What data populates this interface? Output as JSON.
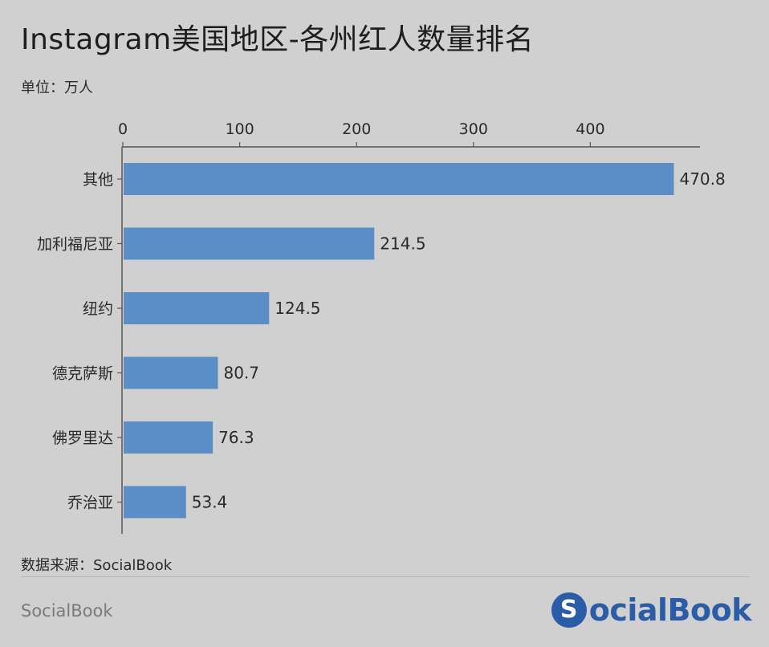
{
  "title": "Instagram美国地区-各州红人数量排名",
  "unit_label": "单位：万人",
  "source_label": "数据来源：SocialBook",
  "footer_brand": "SocialBook",
  "logo": {
    "letter": "S",
    "text": "ocialBook",
    "color": "#2b5ca8"
  },
  "colors": {
    "bar": "#5b8ec4",
    "axis": "#555555",
    "background": "#d0d0d0"
  },
  "chart_data": {
    "type": "bar",
    "orientation": "horizontal",
    "categories": [
      "其他",
      "加利福尼亚",
      "纽约",
      "德克萨斯",
      "佛罗里达",
      "乔治亚"
    ],
    "values": [
      470.8,
      214.5,
      124.5,
      80.7,
      76.3,
      53.4
    ],
    "value_labels": [
      "470.8",
      "214.5",
      "124.5",
      "80.7",
      "76.3",
      "53.4"
    ],
    "xticks": [
      0,
      100,
      200,
      300,
      400
    ],
    "xlim": [
      0,
      493
    ],
    "x_axis_position": "top",
    "grid": false,
    "legend": "none"
  }
}
